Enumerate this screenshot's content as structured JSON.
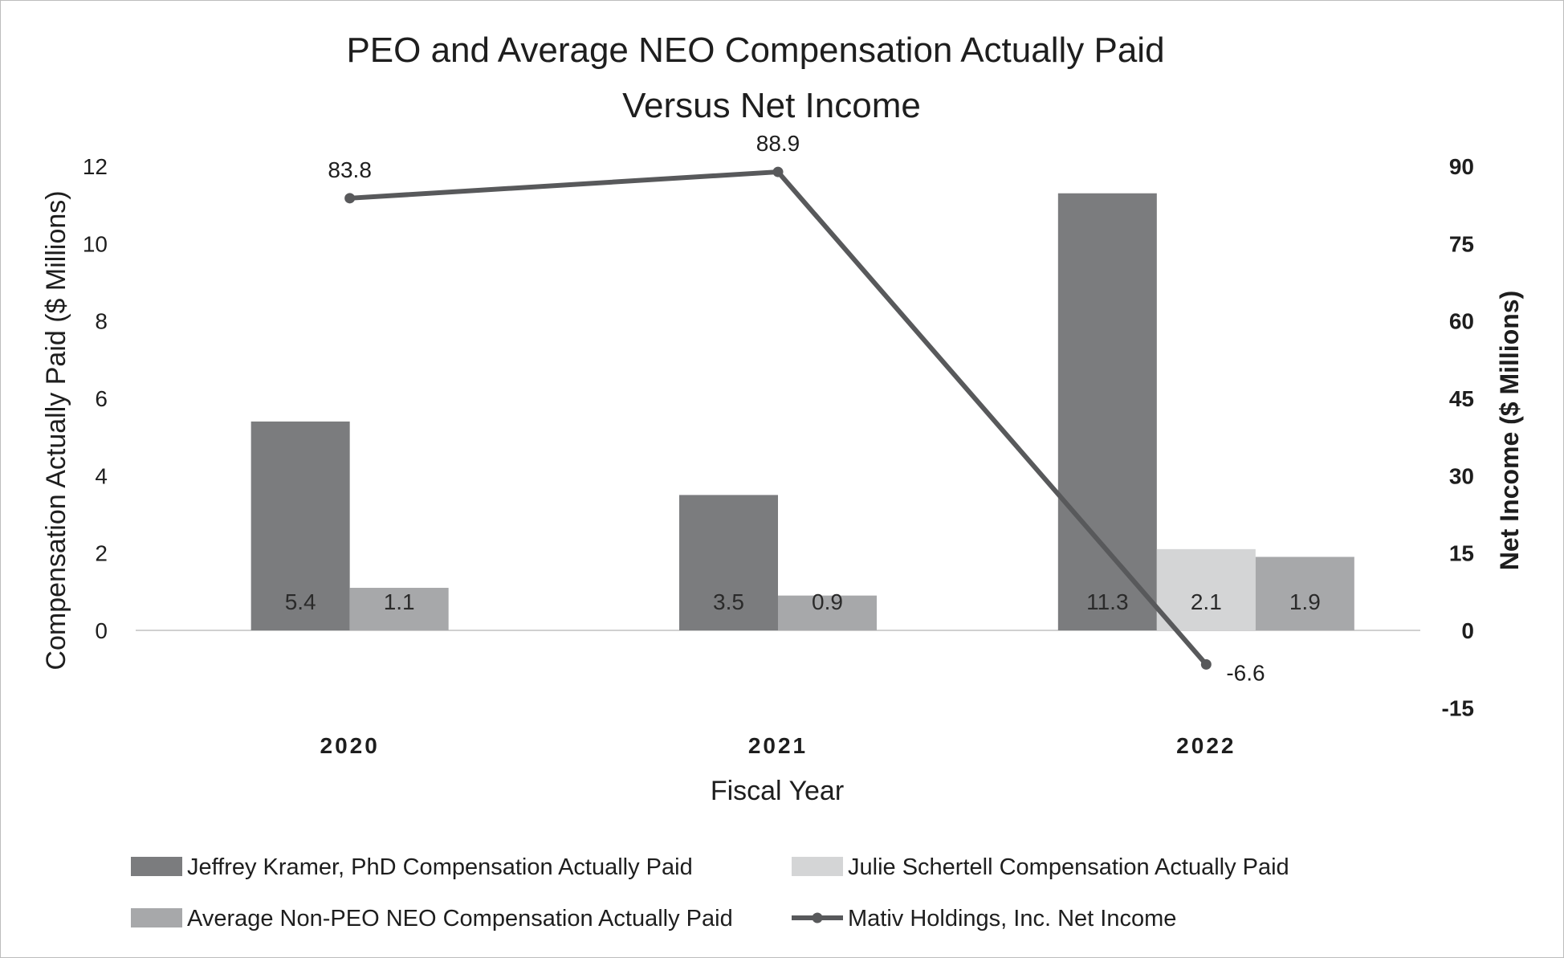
{
  "chart_data": {
    "type": "bar",
    "title": "PEO and Average NEO Compensation Actually Paid",
    "subtitle": "Versus Net Income",
    "xlabel": "Fiscal Year",
    "ylabel": "Compensation Actually Paid ($ Millions)",
    "y2label": "Net Income ($ Millions)",
    "categories": [
      "2020",
      "2021",
      "2022"
    ],
    "ylim": [
      0,
      12
    ],
    "yticks": [
      0,
      2,
      4,
      6,
      8,
      10,
      12
    ],
    "y2lim": [
      -15,
      90
    ],
    "y2ticks": [
      -15,
      0,
      15,
      30,
      45,
      60,
      75,
      90
    ],
    "grid": false,
    "legend_position": "bottom",
    "series": [
      {
        "name": "Jeffrey Kramer, PhD Compensation Actually Paid",
        "type": "bar",
        "axis": "left",
        "color": "#7b7c7e",
        "values": [
          5.4,
          3.5,
          11.3
        ],
        "labels": [
          "5.4",
          "3.5",
          "11.3"
        ]
      },
      {
        "name": "Julie Schertell Compensation Actually Paid",
        "type": "bar",
        "axis": "left",
        "color": "#d4d5d6",
        "values": [
          null,
          null,
          2.1
        ],
        "labels": [
          "",
          "",
          "2.1"
        ]
      },
      {
        "name": "Average Non-PEO NEO Compensation Actually Paid",
        "type": "bar",
        "axis": "left",
        "color": "#a7a8aa",
        "values": [
          1.1,
          0.9,
          1.9
        ],
        "labels": [
          "1.1",
          "0.9",
          "1.9"
        ]
      },
      {
        "name": "Mativ Holdings, Inc. Net Income",
        "type": "line",
        "axis": "right",
        "color": "#58595b",
        "values": [
          83.8,
          88.9,
          -6.6
        ],
        "labels": [
          "83.8",
          "88.9",
          "-6.6"
        ]
      }
    ]
  }
}
